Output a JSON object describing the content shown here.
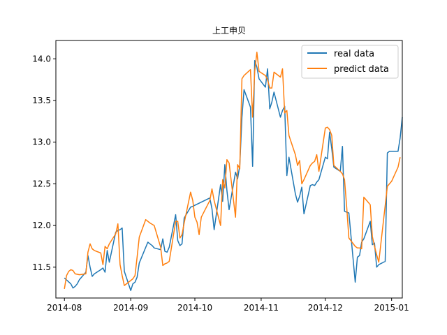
{
  "chart_data": {
    "type": "line",
    "title": "上工申贝",
    "xlabel": "",
    "ylabel": "",
    "x_ticks": [
      "2014-08",
      "2014-09",
      "2014-10",
      "2014-11",
      "2014-12",
      "2015-01"
    ],
    "y_ticks": [
      "11.5",
      "12.0",
      "12.5",
      "13.0",
      "13.5",
      "14.0"
    ],
    "ylim": [
      11.13,
      14.22
    ],
    "xlim": [
      "2014-07-28",
      "2015-01-06"
    ],
    "grid": false,
    "legend_position": "top-right",
    "series": [
      {
        "name": "real data",
        "color": "#1f77b4",
        "points": [
          [
            "2014-08-01",
            11.37
          ],
          [
            "2014-08-04",
            11.3
          ],
          [
            "2014-08-05",
            11.25
          ],
          [
            "2014-08-06",
            11.27
          ],
          [
            "2014-08-07",
            11.3
          ],
          [
            "2014-08-08",
            11.35
          ],
          [
            "2014-08-11",
            11.44
          ],
          [
            "2014-08-12",
            11.64
          ],
          [
            "2014-08-13",
            11.5
          ],
          [
            "2014-08-14",
            11.39
          ],
          [
            "2014-08-15",
            11.42
          ],
          [
            "2014-08-18",
            11.47
          ],
          [
            "2014-08-19",
            11.49
          ],
          [
            "2014-08-20",
            11.44
          ],
          [
            "2014-08-21",
            11.7
          ],
          [
            "2014-08-22",
            11.56
          ],
          [
            "2014-08-25",
            11.92
          ],
          [
            "2014-08-26",
            11.94
          ],
          [
            "2014-08-27",
            11.95
          ],
          [
            "2014-08-28",
            11.97
          ],
          [
            "2014-08-29",
            11.45
          ],
          [
            "2014-09-01",
            11.22
          ],
          [
            "2014-09-02",
            11.3
          ],
          [
            "2014-09-03",
            11.32
          ],
          [
            "2014-09-04",
            11.38
          ],
          [
            "2014-09-05",
            11.55
          ],
          [
            "2014-09-09",
            11.8
          ],
          [
            "2014-09-10",
            11.78
          ],
          [
            "2014-09-11",
            11.76
          ],
          [
            "2014-09-12",
            11.73
          ],
          [
            "2014-09-15",
            11.71
          ],
          [
            "2014-09-16",
            11.84
          ],
          [
            "2014-09-17",
            11.69
          ],
          [
            "2014-09-18",
            11.68
          ],
          [
            "2014-09-19",
            11.74
          ],
          [
            "2014-09-22",
            12.13
          ],
          [
            "2014-09-23",
            11.82
          ],
          [
            "2014-09-24",
            11.76
          ],
          [
            "2014-09-25",
            11.78
          ],
          [
            "2014-09-26",
            12.09
          ],
          [
            "2014-09-29",
            12.22
          ],
          [
            "2014-09-30",
            12.23
          ],
          [
            "2014-10-08",
            12.33
          ],
          [
            "2014-10-09",
            12.2
          ],
          [
            "2014-10-10",
            11.95
          ],
          [
            "2014-10-13",
            12.49
          ],
          [
            "2014-10-14",
            12.29
          ],
          [
            "2014-10-15",
            12.73
          ],
          [
            "2014-10-16",
            12.42
          ],
          [
            "2014-10-17",
            12.19
          ],
          [
            "2014-10-20",
            12.64
          ],
          [
            "2014-10-21",
            12.56
          ],
          [
            "2014-10-22",
            12.72
          ],
          [
            "2014-10-23",
            13.3
          ],
          [
            "2014-10-24",
            13.63
          ],
          [
            "2014-10-27",
            13.42
          ],
          [
            "2014-10-28",
            12.71
          ],
          [
            "2014-10-29",
            13.98
          ],
          [
            "2014-10-30",
            13.9
          ],
          [
            "2014-10-31",
            13.76
          ],
          [
            "2014-11-03",
            13.66
          ],
          [
            "2014-11-04",
            13.88
          ],
          [
            "2014-11-05",
            13.4
          ],
          [
            "2014-11-06",
            13.48
          ],
          [
            "2014-11-07",
            13.6
          ],
          [
            "2014-11-10",
            13.3
          ],
          [
            "2014-11-11",
            13.38
          ],
          [
            "2014-11-12",
            13.43
          ],
          [
            "2014-11-13",
            12.6
          ],
          [
            "2014-11-14",
            12.82
          ],
          [
            "2014-11-17",
            12.38
          ],
          [
            "2014-11-18",
            12.28
          ],
          [
            "2014-11-19",
            12.35
          ],
          [
            "2014-11-20",
            12.46
          ],
          [
            "2014-11-21",
            12.14
          ],
          [
            "2014-11-24",
            12.48
          ],
          [
            "2014-11-25",
            12.49
          ],
          [
            "2014-11-26",
            12.48
          ],
          [
            "2014-11-27",
            12.52
          ],
          [
            "2014-11-28",
            12.55
          ],
          [
            "2014-12-01",
            12.82
          ],
          [
            "2014-12-02",
            12.8
          ],
          [
            "2014-12-03",
            13.12
          ],
          [
            "2014-12-04",
            12.92
          ],
          [
            "2014-12-05",
            12.7
          ],
          [
            "2014-12-08",
            12.65
          ],
          [
            "2014-12-09",
            12.95
          ],
          [
            "2014-12-10",
            12.17
          ],
          [
            "2014-12-11",
            12.16
          ],
          [
            "2014-12-12",
            12.15
          ],
          [
            "2014-12-15",
            11.32
          ],
          [
            "2014-12-16",
            11.62
          ],
          [
            "2014-12-17",
            11.64
          ],
          [
            "2014-12-18",
            11.8
          ],
          [
            "2014-12-19",
            11.84
          ],
          [
            "2014-12-22",
            12.05
          ],
          [
            "2014-12-23",
            11.77
          ],
          [
            "2014-12-24",
            11.79
          ],
          [
            "2014-12-25",
            11.5
          ],
          [
            "2014-12-26",
            11.53
          ],
          [
            "2014-12-29",
            11.57
          ],
          [
            "2014-12-30",
            12.87
          ],
          [
            "2014-12-31",
            12.89
          ],
          [
            "2015-01-01",
            12.89
          ],
          [
            "2015-01-04",
            12.89
          ],
          [
            "2015-01-05",
            13.05
          ],
          [
            "2015-01-06",
            13.3
          ]
        ]
      },
      {
        "name": "predict data",
        "color": "#ff7f0e",
        "points": [
          [
            "2014-08-01",
            11.24
          ],
          [
            "2014-08-02",
            11.4
          ],
          [
            "2014-08-03",
            11.45
          ],
          [
            "2014-08-04",
            11.47
          ],
          [
            "2014-08-05",
            11.46
          ],
          [
            "2014-08-06",
            11.42
          ],
          [
            "2014-08-08",
            11.41
          ],
          [
            "2014-08-11",
            11.42
          ],
          [
            "2014-08-12",
            11.68
          ],
          [
            "2014-08-13",
            11.78
          ],
          [
            "2014-08-14",
            11.72
          ],
          [
            "2014-08-15",
            11.7
          ],
          [
            "2014-08-18",
            11.67
          ],
          [
            "2014-08-19",
            11.53
          ],
          [
            "2014-08-20",
            11.75
          ],
          [
            "2014-08-21",
            11.72
          ],
          [
            "2014-08-22",
            11.78
          ],
          [
            "2014-08-25",
            11.9
          ],
          [
            "2014-08-26",
            12.02
          ],
          [
            "2014-08-27",
            11.53
          ],
          [
            "2014-08-28",
            11.4
          ],
          [
            "2014-08-29",
            11.28
          ],
          [
            "2014-09-01",
            11.34
          ],
          [
            "2014-09-02",
            11.36
          ],
          [
            "2014-09-03",
            11.4
          ],
          [
            "2014-09-04",
            11.62
          ],
          [
            "2014-09-05",
            11.86
          ],
          [
            "2014-09-08",
            12.07
          ],
          [
            "2014-09-10",
            12.03
          ],
          [
            "2014-09-12",
            12.0
          ],
          [
            "2014-09-15",
            11.74
          ],
          [
            "2014-09-16",
            11.52
          ],
          [
            "2014-09-17",
            11.54
          ],
          [
            "2014-09-18",
            11.55
          ],
          [
            "2014-09-19",
            11.57
          ],
          [
            "2014-09-22",
            12.05
          ],
          [
            "2014-09-23",
            12.05
          ],
          [
            "2014-09-24",
            11.85
          ],
          [
            "2014-09-25",
            11.89
          ],
          [
            "2014-09-26",
            12.03
          ],
          [
            "2014-09-29",
            12.4
          ],
          [
            "2014-09-30",
            12.3
          ],
          [
            "2014-10-01",
            12.1
          ],
          [
            "2014-10-02",
            12.04
          ],
          [
            "2014-10-03",
            11.89
          ],
          [
            "2014-10-04",
            12.1
          ],
          [
            "2014-10-08",
            12.3
          ],
          [
            "2014-10-09",
            12.44
          ],
          [
            "2014-10-10",
            12.3
          ],
          [
            "2014-10-13",
            12.0
          ],
          [
            "2014-10-14",
            12.55
          ],
          [
            "2014-10-15",
            12.45
          ],
          [
            "2014-10-16",
            12.79
          ],
          [
            "2014-10-17",
            12.75
          ],
          [
            "2014-10-20",
            12.1
          ],
          [
            "2014-10-21",
            12.73
          ],
          [
            "2014-10-22",
            12.68
          ],
          [
            "2014-10-23",
            13.76
          ],
          [
            "2014-10-24",
            13.8
          ],
          [
            "2014-10-27",
            13.87
          ],
          [
            "2014-10-28",
            13.3
          ],
          [
            "2014-10-29",
            13.85
          ],
          [
            "2014-10-30",
            14.08
          ],
          [
            "2014-10-31",
            13.85
          ],
          [
            "2014-11-03",
            13.8
          ],
          [
            "2014-11-04",
            13.75
          ],
          [
            "2014-11-05",
            13.65
          ],
          [
            "2014-11-06",
            13.65
          ],
          [
            "2014-11-07",
            13.84
          ],
          [
            "2014-11-10",
            13.78
          ],
          [
            "2014-11-11",
            13.88
          ],
          [
            "2014-11-12",
            13.35
          ],
          [
            "2014-11-13",
            13.38
          ],
          [
            "2014-11-14",
            13.08
          ],
          [
            "2014-11-17",
            12.85
          ],
          [
            "2014-11-18",
            12.72
          ],
          [
            "2014-11-19",
            12.78
          ],
          [
            "2014-11-20",
            12.5
          ],
          [
            "2014-11-21",
            12.55
          ],
          [
            "2014-11-24",
            12.72
          ],
          [
            "2014-11-25",
            12.75
          ],
          [
            "2014-11-26",
            12.77
          ],
          [
            "2014-11-27",
            12.85
          ],
          [
            "2014-11-28",
            12.65
          ],
          [
            "2014-12-01",
            13.17
          ],
          [
            "2014-12-02",
            13.18
          ],
          [
            "2014-12-03",
            13.15
          ],
          [
            "2014-12-04",
            13.08
          ],
          [
            "2014-12-05",
            12.72
          ],
          [
            "2014-12-08",
            12.65
          ],
          [
            "2014-12-09",
            12.62
          ],
          [
            "2014-12-10",
            12.55
          ],
          [
            "2014-12-11",
            12.22
          ],
          [
            "2014-12-12",
            11.85
          ],
          [
            "2014-12-15",
            11.75
          ],
          [
            "2014-12-16",
            11.73
          ],
          [
            "2014-12-17",
            11.73
          ],
          [
            "2014-12-18",
            11.72
          ],
          [
            "2014-12-19",
            12.34
          ],
          [
            "2014-12-22",
            12.25
          ],
          [
            "2014-12-23",
            11.87
          ],
          [
            "2014-12-24",
            11.75
          ],
          [
            "2014-12-25",
            11.65
          ],
          [
            "2014-12-26",
            11.56
          ],
          [
            "2014-12-29",
            12.24
          ],
          [
            "2014-12-30",
            12.47
          ],
          [
            "2014-12-31",
            12.5
          ],
          [
            "2015-01-01",
            12.53
          ],
          [
            "2015-01-04",
            12.7
          ],
          [
            "2015-01-05",
            12.82
          ]
        ]
      }
    ]
  }
}
